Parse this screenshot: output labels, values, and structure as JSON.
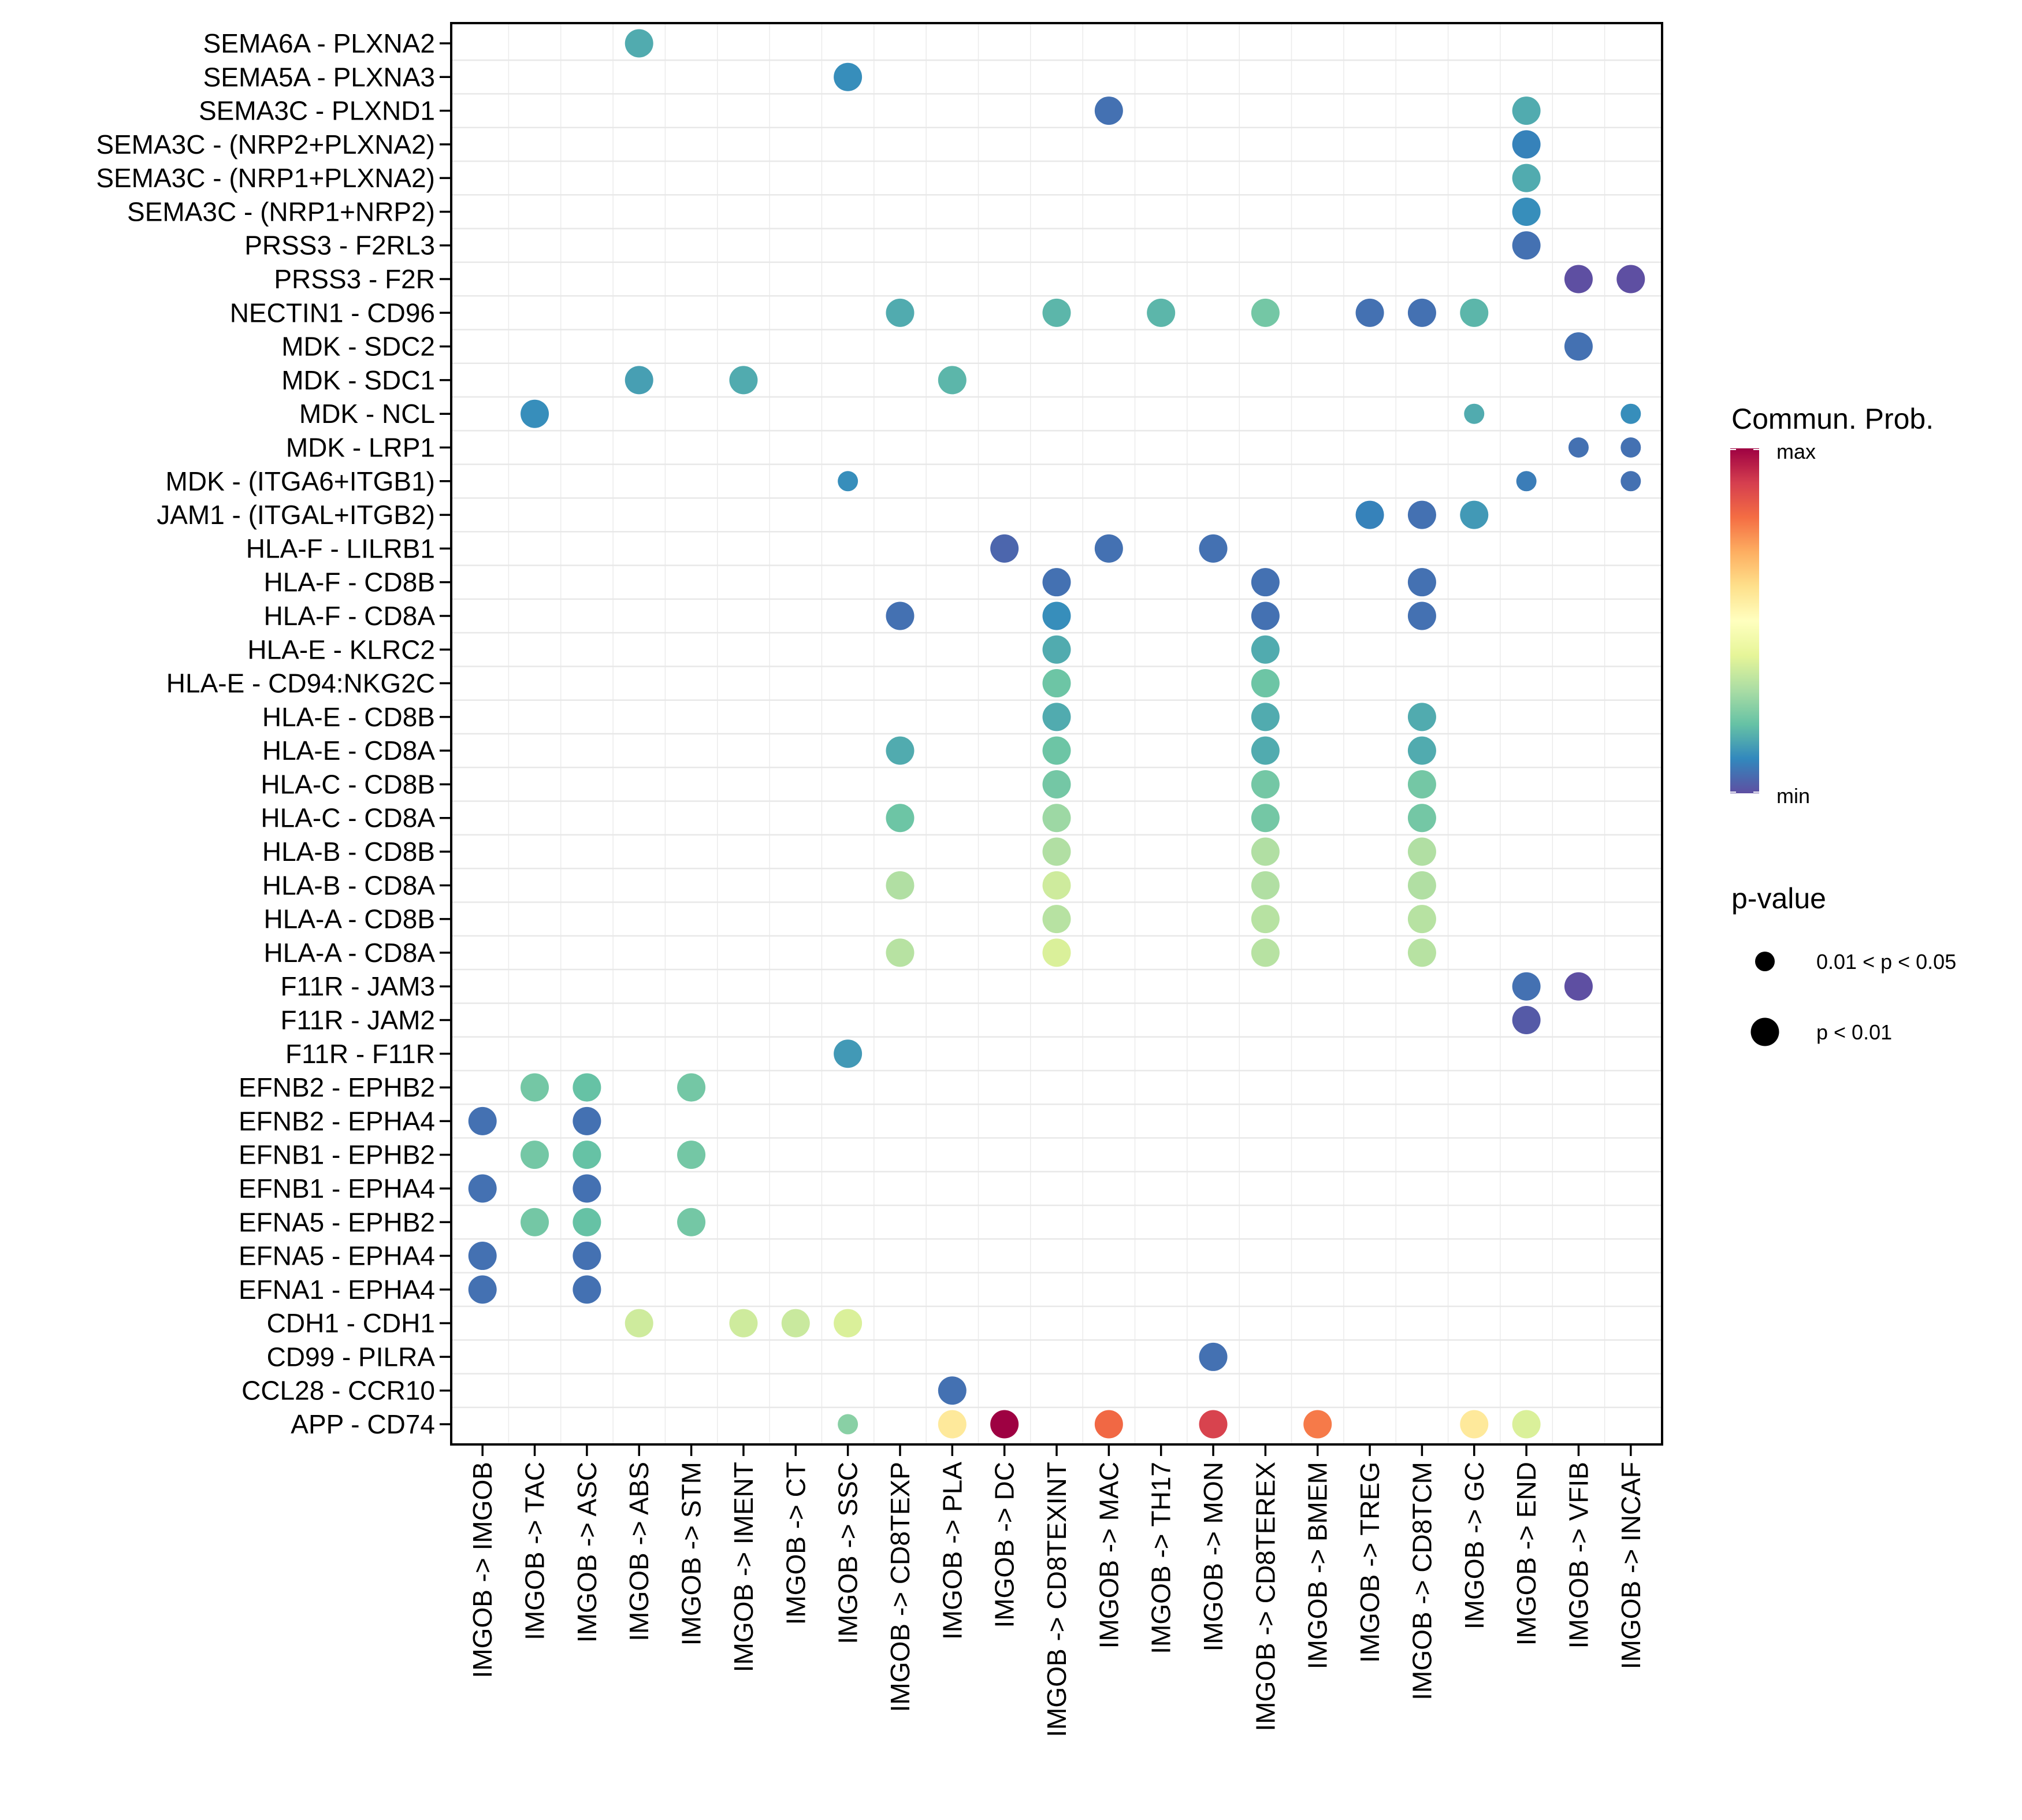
{
  "chart_data": {
    "type": "scatter",
    "subtype": "bubble",
    "title": "",
    "xlabel": "",
    "ylabel": "",
    "grid": true,
    "legend_position": "right",
    "x_categories": [
      "IMGOB -> IMGOB",
      "IMGOB -> TAC",
      "IMGOB -> ASC",
      "IMGOB -> ABS",
      "IMGOB -> STM",
      "IMGOB -> IMENT",
      "IMGOB -> CT",
      "IMGOB -> SSC",
      "IMGOB -> CD8TEXP",
      "IMGOB -> PLA",
      "IMGOB -> DC",
      "IMGOB -> CD8TEXINT",
      "IMGOB -> MAC",
      "IMGOB -> TH17",
      "IMGOB -> MON",
      "IMGOB -> CD8TEREX",
      "IMGOB -> BMEM",
      "IMGOB -> TREG",
      "IMGOB -> CD8TCM",
      "IMGOB -> GC",
      "IMGOB -> END",
      "IMGOB -> VFIB",
      "IMGOB -> INCAF"
    ],
    "y_categories": [
      "SEMA6A - PLXNA2",
      "SEMA5A - PLXNA3",
      "SEMA3C - PLXND1",
      "SEMA3C - (NRP2+PLXNA2)",
      "SEMA3C - (NRP1+PLXNA2)",
      "SEMA3C - (NRP1+NRP2)",
      "PRSS3 - F2RL3",
      "PRSS3 - F2R",
      "NECTIN1 - CD96",
      "MDK - SDC2",
      "MDK - SDC1",
      "MDK - NCL",
      "MDK - LRP1",
      "MDK - (ITGA6+ITGB1)",
      "JAM1 - (ITGAL+ITGB2)",
      "HLA-F - LILRB1",
      "HLA-F - CD8B",
      "HLA-F - CD8A",
      "HLA-E - KLRC2",
      "HLA-E - CD94:NKG2C",
      "HLA-E - CD8B",
      "HLA-E - CD8A",
      "HLA-C - CD8B",
      "HLA-C - CD8A",
      "HLA-B - CD8B",
      "HLA-B - CD8A",
      "HLA-A - CD8B",
      "HLA-A - CD8A",
      "F11R - JAM3",
      "F11R - JAM2",
      "F11R - F11R",
      "EFNB2 - EPHB2",
      "EFNB2 - EPHA4",
      "EFNB1 - EPHB2",
      "EFNB1 - EPHA4",
      "EFNA5 - EPHB2",
      "EFNA5 - EPHA4",
      "EFNA1 - EPHA4",
      "CDH1 - CDH1",
      "CD99 - PILRA",
      "CCL28 - CCR10",
      "APP - CD74"
    ],
    "value_scale": {
      "name": "Commun. Prob.",
      "min_label": "min",
      "max_label": "max",
      "range": [
        0,
        1
      ],
      "palette": [
        "#5E4FA2",
        "#3288BD",
        "#66C2A5",
        "#ABDDA4",
        "#E6F598",
        "#FFFFBF",
        "#FEE08B",
        "#FDAE61",
        "#F46D43",
        "#D53E4F",
        "#9E0142"
      ]
    },
    "pvalue_legend": {
      "title": "p-value",
      "levels": [
        {
          "key": "p05",
          "label": "0.01 < p < 0.05"
        },
        {
          "key": "p01",
          "label": "p < 0.01"
        }
      ]
    },
    "points": [
      {
        "y": "SEMA6A - PLXNA2",
        "x": "IMGOB -> ABS",
        "prob": 0.16,
        "pval": "p01"
      },
      {
        "y": "SEMA5A - PLXNA3",
        "x": "IMGOB -> SSC",
        "prob": 0.11,
        "pval": "p01"
      },
      {
        "y": "SEMA3C - PLXND1",
        "x": "IMGOB -> MAC",
        "prob": 0.06,
        "pval": "p01"
      },
      {
        "y": "SEMA3C - PLXND1",
        "x": "IMGOB -> END",
        "prob": 0.16,
        "pval": "p01"
      },
      {
        "y": "SEMA3C - (NRP2+PLXNA2)",
        "x": "IMGOB -> END",
        "prob": 0.09,
        "pval": "p01"
      },
      {
        "y": "SEMA3C - (NRP1+PLXNA2)",
        "x": "IMGOB -> END",
        "prob": 0.16,
        "pval": "p01"
      },
      {
        "y": "SEMA3C - (NRP1+NRP2)",
        "x": "IMGOB -> END",
        "prob": 0.11,
        "pval": "p01"
      },
      {
        "y": "PRSS3 - F2RL3",
        "x": "IMGOB -> END",
        "prob": 0.06,
        "pval": "p01"
      },
      {
        "y": "PRSS3 - F2R",
        "x": "IMGOB -> VFIB",
        "prob": 0.0,
        "pval": "p01"
      },
      {
        "y": "PRSS3 - F2R",
        "x": "IMGOB -> INCAF",
        "prob": 0.0,
        "pval": "p01"
      },
      {
        "y": "NECTIN1 - CD96",
        "x": "IMGOB -> CD8TEXP",
        "prob": 0.16,
        "pval": "p01"
      },
      {
        "y": "NECTIN1 - CD96",
        "x": "IMGOB -> CD8TEXINT",
        "prob": 0.18,
        "pval": "p01"
      },
      {
        "y": "NECTIN1 - CD96",
        "x": "IMGOB -> TH17",
        "prob": 0.18,
        "pval": "p01"
      },
      {
        "y": "NECTIN1 - CD96",
        "x": "IMGOB -> CD8TEREX",
        "prob": 0.22,
        "pval": "p01"
      },
      {
        "y": "NECTIN1 - CD96",
        "x": "IMGOB -> TREG",
        "prob": 0.06,
        "pval": "p01"
      },
      {
        "y": "NECTIN1 - CD96",
        "x": "IMGOB -> CD8TCM",
        "prob": 0.06,
        "pval": "p01"
      },
      {
        "y": "NECTIN1 - CD96",
        "x": "IMGOB -> GC",
        "prob": 0.18,
        "pval": "p01"
      },
      {
        "y": "MDK - SDC2",
        "x": "IMGOB -> VFIB",
        "prob": 0.06,
        "pval": "p01"
      },
      {
        "y": "MDK - SDC1",
        "x": "IMGOB -> ABS",
        "prob": 0.14,
        "pval": "p01"
      },
      {
        "y": "MDK - SDC1",
        "x": "IMGOB -> IMENT",
        "prob": 0.16,
        "pval": "p01"
      },
      {
        "y": "MDK - SDC1",
        "x": "IMGOB -> PLA",
        "prob": 0.18,
        "pval": "p01"
      },
      {
        "y": "MDK - NCL",
        "x": "IMGOB -> TAC",
        "prob": 0.11,
        "pval": "p01"
      },
      {
        "y": "MDK - NCL",
        "x": "IMGOB -> GC",
        "prob": 0.16,
        "pval": "p05"
      },
      {
        "y": "MDK - NCL",
        "x": "IMGOB -> INCAF",
        "prob": 0.11,
        "pval": "p05"
      },
      {
        "y": "MDK - LRP1",
        "x": "IMGOB -> VFIB",
        "prob": 0.06,
        "pval": "p05"
      },
      {
        "y": "MDK - LRP1",
        "x": "IMGOB -> INCAF",
        "prob": 0.06,
        "pval": "p05"
      },
      {
        "y": "MDK - (ITGA6+ITGB1)",
        "x": "IMGOB -> SSC",
        "prob": 0.11,
        "pval": "p05"
      },
      {
        "y": "MDK - (ITGA6+ITGB1)",
        "x": "IMGOB -> END",
        "prob": 0.08,
        "pval": "p05"
      },
      {
        "y": "MDK - (ITGA6+ITGB1)",
        "x": "IMGOB -> INCAF",
        "prob": 0.06,
        "pval": "p05"
      },
      {
        "y": "JAM1 - (ITGAL+ITGB2)",
        "x": "IMGOB -> TREG",
        "prob": 0.09,
        "pval": "p01"
      },
      {
        "y": "JAM1 - (ITGAL+ITGB2)",
        "x": "IMGOB -> CD8TCM",
        "prob": 0.06,
        "pval": "p01"
      },
      {
        "y": "JAM1 - (ITGAL+ITGB2)",
        "x": "IMGOB -> GC",
        "prob": 0.13,
        "pval": "p01"
      },
      {
        "y": "HLA-F - LILRB1",
        "x": "IMGOB -> DC",
        "prob": 0.04,
        "pval": "p01"
      },
      {
        "y": "HLA-F - LILRB1",
        "x": "IMGOB -> MAC",
        "prob": 0.06,
        "pval": "p01"
      },
      {
        "y": "HLA-F - LILRB1",
        "x": "IMGOB -> MON",
        "prob": 0.06,
        "pval": "p01"
      },
      {
        "y": "HLA-F - CD8B",
        "x": "IMGOB -> CD8TEXINT",
        "prob": 0.06,
        "pval": "p01"
      },
      {
        "y": "HLA-F - CD8B",
        "x": "IMGOB -> CD8TEREX",
        "prob": 0.06,
        "pval": "p01"
      },
      {
        "y": "HLA-F - CD8B",
        "x": "IMGOB -> CD8TCM",
        "prob": 0.06,
        "pval": "p01"
      },
      {
        "y": "HLA-F - CD8A",
        "x": "IMGOB -> CD8TEXP",
        "prob": 0.06,
        "pval": "p01"
      },
      {
        "y": "HLA-F - CD8A",
        "x": "IMGOB -> CD8TEXINT",
        "prob": 0.11,
        "pval": "p01"
      },
      {
        "y": "HLA-F - CD8A",
        "x": "IMGOB -> CD8TEREX",
        "prob": 0.06,
        "pval": "p01"
      },
      {
        "y": "HLA-F - CD8A",
        "x": "IMGOB -> CD8TCM",
        "prob": 0.06,
        "pval": "p01"
      },
      {
        "y": "HLA-E - KLRC2",
        "x": "IMGOB -> CD8TEXINT",
        "prob": 0.16,
        "pval": "p01"
      },
      {
        "y": "HLA-E - KLRC2",
        "x": "IMGOB -> CD8TEREX",
        "prob": 0.16,
        "pval": "p01"
      },
      {
        "y": "HLA-E - CD94:NKG2C",
        "x": "IMGOB -> CD8TEXINT",
        "prob": 0.21,
        "pval": "p01"
      },
      {
        "y": "HLA-E - CD94:NKG2C",
        "x": "IMGOB -> CD8TEREX",
        "prob": 0.21,
        "pval": "p01"
      },
      {
        "y": "HLA-E - CD8B",
        "x": "IMGOB -> CD8TEXINT",
        "prob": 0.16,
        "pval": "p01"
      },
      {
        "y": "HLA-E - CD8B",
        "x": "IMGOB -> CD8TEREX",
        "prob": 0.16,
        "pval": "p01"
      },
      {
        "y": "HLA-E - CD8B",
        "x": "IMGOB -> CD8TCM",
        "prob": 0.16,
        "pval": "p01"
      },
      {
        "y": "HLA-E - CD8A",
        "x": "IMGOB -> CD8TEXP",
        "prob": 0.16,
        "pval": "p01"
      },
      {
        "y": "HLA-E - CD8A",
        "x": "IMGOB -> CD8TEXINT",
        "prob": 0.21,
        "pval": "p01"
      },
      {
        "y": "HLA-E - CD8A",
        "x": "IMGOB -> CD8TEREX",
        "prob": 0.16,
        "pval": "p01"
      },
      {
        "y": "HLA-E - CD8A",
        "x": "IMGOB -> CD8TCM",
        "prob": 0.16,
        "pval": "p01"
      },
      {
        "y": "HLA-C - CD8B",
        "x": "IMGOB -> CD8TEXINT",
        "prob": 0.22,
        "pval": "p01"
      },
      {
        "y": "HLA-C - CD8B",
        "x": "IMGOB -> CD8TEREX",
        "prob": 0.22,
        "pval": "p01"
      },
      {
        "y": "HLA-C - CD8B",
        "x": "IMGOB -> CD8TCM",
        "prob": 0.22,
        "pval": "p01"
      },
      {
        "y": "HLA-C - CD8A",
        "x": "IMGOB -> CD8TEXP",
        "prob": 0.21,
        "pval": "p01"
      },
      {
        "y": "HLA-C - CD8A",
        "x": "IMGOB -> CD8TEXINT",
        "prob": 0.28,
        "pval": "p01"
      },
      {
        "y": "HLA-C - CD8A",
        "x": "IMGOB -> CD8TEREX",
        "prob": 0.22,
        "pval": "p01"
      },
      {
        "y": "HLA-C - CD8A",
        "x": "IMGOB -> CD8TCM",
        "prob": 0.22,
        "pval": "p01"
      },
      {
        "y": "HLA-B - CD8B",
        "x": "IMGOB -> CD8TEXINT",
        "prob": 0.31,
        "pval": "p01"
      },
      {
        "y": "HLA-B - CD8B",
        "x": "IMGOB -> CD8TEREX",
        "prob": 0.31,
        "pval": "p01"
      },
      {
        "y": "HLA-B - CD8B",
        "x": "IMGOB -> CD8TCM",
        "prob": 0.31,
        "pval": "p01"
      },
      {
        "y": "HLA-B - CD8A",
        "x": "IMGOB -> CD8TEXP",
        "prob": 0.31,
        "pval": "p01"
      },
      {
        "y": "HLA-B - CD8A",
        "x": "IMGOB -> CD8TEXINT",
        "prob": 0.36,
        "pval": "p01"
      },
      {
        "y": "HLA-B - CD8A",
        "x": "IMGOB -> CD8TEREX",
        "prob": 0.31,
        "pval": "p01"
      },
      {
        "y": "HLA-B - CD8A",
        "x": "IMGOB -> CD8TCM",
        "prob": 0.31,
        "pval": "p01"
      },
      {
        "y": "HLA-A - CD8B",
        "x": "IMGOB -> CD8TEXINT",
        "prob": 0.32,
        "pval": "p01"
      },
      {
        "y": "HLA-A - CD8B",
        "x": "IMGOB -> CD8TEREX",
        "prob": 0.32,
        "pval": "p01"
      },
      {
        "y": "HLA-A - CD8B",
        "x": "IMGOB -> CD8TCM",
        "prob": 0.32,
        "pval": "p01"
      },
      {
        "y": "HLA-A - CD8A",
        "x": "IMGOB -> CD8TEXP",
        "prob": 0.32,
        "pval": "p01"
      },
      {
        "y": "HLA-A - CD8A",
        "x": "IMGOB -> CD8TEXINT",
        "prob": 0.38,
        "pval": "p01"
      },
      {
        "y": "HLA-A - CD8A",
        "x": "IMGOB -> CD8TEREX",
        "prob": 0.32,
        "pval": "p01"
      },
      {
        "y": "HLA-A - CD8A",
        "x": "IMGOB -> CD8TCM",
        "prob": 0.32,
        "pval": "p01"
      },
      {
        "y": "F11R - JAM3",
        "x": "IMGOB -> END",
        "prob": 0.06,
        "pval": "p01"
      },
      {
        "y": "F11R - JAM3",
        "x": "IMGOB -> VFIB",
        "prob": 0.0,
        "pval": "p01"
      },
      {
        "y": "F11R - JAM2",
        "x": "IMGOB -> END",
        "prob": 0.02,
        "pval": "p01"
      },
      {
        "y": "F11R - F11R",
        "x": "IMGOB -> SSC",
        "prob": 0.13,
        "pval": "p01"
      },
      {
        "y": "EFNB2 - EPHB2",
        "x": "IMGOB -> TAC",
        "prob": 0.22,
        "pval": "p01"
      },
      {
        "y": "EFNB2 - EPHB2",
        "x": "IMGOB -> ASC",
        "prob": 0.2,
        "pval": "p01"
      },
      {
        "y": "EFNB2 - EPHB2",
        "x": "IMGOB -> STM",
        "prob": 0.22,
        "pval": "p01"
      },
      {
        "y": "EFNB2 - EPHA4",
        "x": "IMGOB -> IMGOB",
        "prob": 0.06,
        "pval": "p01"
      },
      {
        "y": "EFNB2 - EPHA4",
        "x": "IMGOB -> ASC",
        "prob": 0.06,
        "pval": "p01"
      },
      {
        "y": "EFNB1 - EPHB2",
        "x": "IMGOB -> TAC",
        "prob": 0.22,
        "pval": "p01"
      },
      {
        "y": "EFNB1 - EPHB2",
        "x": "IMGOB -> ASC",
        "prob": 0.2,
        "pval": "p01"
      },
      {
        "y": "EFNB1 - EPHB2",
        "x": "IMGOB -> STM",
        "prob": 0.22,
        "pval": "p01"
      },
      {
        "y": "EFNB1 - EPHA4",
        "x": "IMGOB -> IMGOB",
        "prob": 0.06,
        "pval": "p01"
      },
      {
        "y": "EFNB1 - EPHA4",
        "x": "IMGOB -> ASC",
        "prob": 0.06,
        "pval": "p01"
      },
      {
        "y": "EFNA5 - EPHB2",
        "x": "IMGOB -> TAC",
        "prob": 0.22,
        "pval": "p01"
      },
      {
        "y": "EFNA5 - EPHB2",
        "x": "IMGOB -> ASC",
        "prob": 0.2,
        "pval": "p01"
      },
      {
        "y": "EFNA5 - EPHB2",
        "x": "IMGOB -> STM",
        "prob": 0.22,
        "pval": "p01"
      },
      {
        "y": "EFNA5 - EPHA4",
        "x": "IMGOB -> IMGOB",
        "prob": 0.06,
        "pval": "p01"
      },
      {
        "y": "EFNA5 - EPHA4",
        "x": "IMGOB -> ASC",
        "prob": 0.06,
        "pval": "p01"
      },
      {
        "y": "EFNA1 - EPHA4",
        "x": "IMGOB -> IMGOB",
        "prob": 0.06,
        "pval": "p01"
      },
      {
        "y": "EFNA1 - EPHA4",
        "x": "IMGOB -> ASC",
        "prob": 0.06,
        "pval": "p01"
      },
      {
        "y": "CDH1 - CDH1",
        "x": "IMGOB -> ABS",
        "prob": 0.36,
        "pval": "p01"
      },
      {
        "y": "CDH1 - CDH1",
        "x": "IMGOB -> IMENT",
        "prob": 0.36,
        "pval": "p01"
      },
      {
        "y": "CDH1 - CDH1",
        "x": "IMGOB -> CT",
        "prob": 0.35,
        "pval": "p01"
      },
      {
        "y": "CDH1 - CDH1",
        "x": "IMGOB -> SSC",
        "prob": 0.38,
        "pval": "p01"
      },
      {
        "y": "CD99 - PILRA",
        "x": "IMGOB -> MON",
        "prob": 0.06,
        "pval": "p01"
      },
      {
        "y": "CCL28 - CCR10",
        "x": "IMGOB -> PLA",
        "prob": 0.06,
        "pval": "p01"
      },
      {
        "y": "APP - CD74",
        "x": "IMGOB -> SSC",
        "prob": 0.25,
        "pval": "p05"
      },
      {
        "y": "APP - CD74",
        "x": "IMGOB -> PLA",
        "prob": 0.57,
        "pval": "p01"
      },
      {
        "y": "APP - CD74",
        "x": "IMGOB -> DC",
        "prob": 1.0,
        "pval": "p01"
      },
      {
        "y": "APP - CD74",
        "x": "IMGOB -> MAC",
        "prob": 0.81,
        "pval": "p01"
      },
      {
        "y": "APP - CD74",
        "x": "IMGOB -> MON",
        "prob": 0.89,
        "pval": "p01"
      },
      {
        "y": "APP - CD74",
        "x": "IMGOB -> BMEM",
        "prob": 0.78,
        "pval": "p01"
      },
      {
        "y": "APP - CD74",
        "x": "IMGOB -> GC",
        "prob": 0.57,
        "pval": "p01"
      },
      {
        "y": "APP - CD74",
        "x": "IMGOB -> END",
        "prob": 0.38,
        "pval": "p01"
      }
    ]
  }
}
